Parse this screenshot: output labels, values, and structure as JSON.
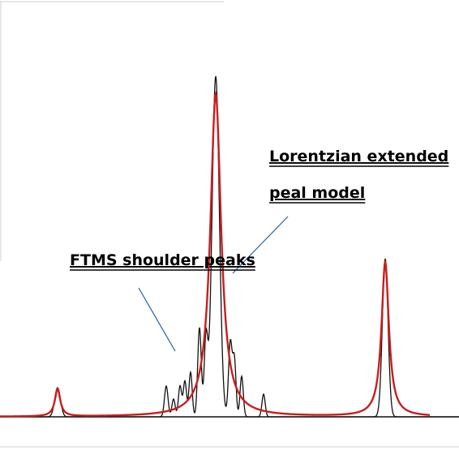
{
  "chart_data": {
    "type": "line",
    "title": "",
    "xlabel": "",
    "ylabel": "",
    "grid": false,
    "colors": {
      "measured": "#111111",
      "model": "#c81e1e",
      "leader": "#1f5fa8",
      "frame": "#d0d0d0"
    },
    "series": [
      {
        "peaks": [
          {
            "x": 266,
            "height": 420,
            "width": 4.5
          },
          {
            "x": 475,
            "height": 195,
            "width": 3.5
          },
          {
            "x": 71,
            "height": 36,
            "width": 3.5
          },
          {
            "x": 205,
            "height": 38,
            "width": 2.2
          },
          {
            "x": 214,
            "height": 22,
            "width": 2.0
          },
          {
            "x": 222,
            "height": 38,
            "width": 2.0
          },
          {
            "x": 228,
            "height": 44,
            "width": 2.0
          },
          {
            "x": 235,
            "height": 55,
            "width": 2.0
          },
          {
            "x": 246,
            "height": 110,
            "width": 2.2
          },
          {
            "x": 254,
            "height": 95,
            "width": 2.2
          },
          {
            "x": 284,
            "height": 92,
            "width": 2.2
          },
          {
            "x": 289,
            "height": 70,
            "width": 2.0
          },
          {
            "x": 298,
            "height": 50,
            "width": 2.0
          },
          {
            "x": 325,
            "height": 28,
            "width": 2.0
          }
        ]
      },
      {
        "lorentz_peaks": [
          {
            "x": 266,
            "height": 398,
            "hwhm": 8
          },
          {
            "x": 475,
            "height": 190,
            "hwhm": 5.5
          },
          {
            "x": 71,
            "height": 34,
            "hwhm": 4
          }
        ]
      }
    ],
    "annotations": [
      {
        "text": "FTMS shoulder peaks"
      },
      {
        "text": "Lorentzian extended"
      },
      {
        "text": "peal model"
      }
    ]
  }
}
